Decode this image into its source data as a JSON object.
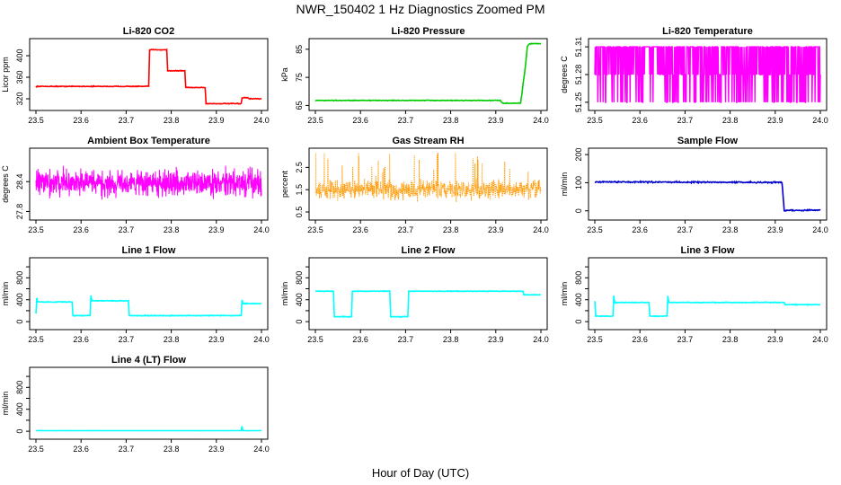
{
  "figure": {
    "title": "NWR_150402  1 Hz Diagnostics Zoomed PM",
    "xlabel": "Hour of Day (UTC)"
  },
  "chart_data": [
    {
      "id": "co2",
      "type": "line",
      "title": "Li-820 CO2",
      "ylabel": "Licor ppm",
      "color": "#ff0000",
      "xlim": [
        23.5,
        24.0
      ],
      "ylim": [
        305,
        425
      ],
      "yticks": [
        320,
        360,
        400
      ],
      "ytick_labels": [
        "320",
        "360",
        "400"
      ],
      "x": [
        23.5,
        23.75,
        23.752,
        23.79,
        23.792,
        23.83,
        23.832,
        23.875,
        23.877,
        23.955,
        23.957,
        23.97,
        23.972,
        24.0
      ],
      "y": [
        343,
        343,
        411,
        411,
        372,
        372,
        341,
        341,
        311,
        311,
        322,
        322,
        320,
        320
      ],
      "noise": 0.6
    },
    {
      "id": "pressure",
      "type": "line",
      "title": "Li-820 Pressure",
      "ylabel": "kPa",
      "color": "#00cc00",
      "xlim": [
        23.5,
        24.0
      ],
      "ylim": [
        64.5,
        87.5
      ],
      "yticks": [
        65,
        75,
        85
      ],
      "ytick_labels": [
        "65",
        "75",
        "85"
      ],
      "x": [
        23.5,
        23.91,
        23.915,
        23.955,
        23.965,
        23.97,
        23.975,
        24.0
      ],
      "y": [
        66.8,
        66.8,
        65.8,
        65.8,
        78,
        86,
        87,
        87
      ],
      "noise": 0.1
    },
    {
      "id": "licor_temp",
      "type": "line",
      "title": "Li-820 Temperature",
      "ylabel": "degrees C",
      "color": "#ff00ff",
      "xlim": [
        23.5,
        24.0
      ],
      "ylim": [
        51.245,
        51.315
      ],
      "yticks": [
        51.25,
        51.28,
        51.31
      ],
      "ytick_labels": [
        "51.25",
        "51.28",
        "51.31"
      ],
      "levels": [
        51.25,
        51.28,
        51.31
      ],
      "pattern": "binary"
    },
    {
      "id": "box_temp",
      "type": "line",
      "title": "Ambient Box Temperature",
      "ylabel": "degrees C",
      "color": "#ff00ff",
      "xlim": [
        23.5,
        24.0
      ],
      "ylim": [
        27.7,
        29.0
      ],
      "yticks": [
        27.8,
        28.4
      ],
      "ytick_labels": [
        "27.8",
        "28.4"
      ],
      "center": 28.37,
      "spread": 0.22,
      "pattern": "noisy"
    },
    {
      "id": "rh",
      "type": "scatter",
      "title": "Gas Stream RH",
      "ylabel": "percent",
      "color": "#ff9900",
      "xlim": [
        23.5,
        24.0
      ],
      "ylim": [
        0.3,
        3.2
      ],
      "yticks": [
        0.5,
        1.5,
        2.5
      ],
      "ytick_labels": [
        "0.5",
        "1.5",
        "2.5"
      ],
      "center": 1.5,
      "spread": 0.35,
      "pattern": "noisy-dots"
    },
    {
      "id": "sample_flow",
      "type": "line",
      "title": "Sample Flow",
      "ylabel": "ml/min",
      "color": "#0000cc",
      "xlim": [
        23.5,
        24.0
      ],
      "ylim": [
        -20,
        210
      ],
      "yticks": [
        0,
        100,
        200
      ],
      "ytick_labels": [
        "0",
        "100",
        "200"
      ],
      "x": [
        23.5,
        23.915,
        23.92,
        24.0
      ],
      "y": [
        103,
        101,
        2,
        2
      ],
      "noise": 2
    },
    {
      "id": "line1",
      "type": "line",
      "title": "Line 1 Flow",
      "ylabel": "ml/min",
      "color": "#00ffff",
      "xlim": [
        23.5,
        24.0
      ],
      "ylim": [
        -80,
        1100
      ],
      "yticks": [
        0,
        200,
        400,
        600,
        800,
        1000
      ],
      "ytick_labels": [
        "0",
        "400",
        "800"
      ],
      "x": [
        23.5,
        23.502,
        23.504,
        23.58,
        23.582,
        23.62,
        23.622,
        23.624,
        23.705,
        23.707,
        23.955,
        23.957,
        23.959,
        24.0
      ],
      "y": [
        150,
        430,
        360,
        360,
        110,
        110,
        480,
        380,
        380,
        110,
        110,
        400,
        330,
        330
      ],
      "noise": 6
    },
    {
      "id": "line2",
      "type": "line",
      "title": "Line 2 Flow",
      "ylabel": "ml/min",
      "color": "#00ffff",
      "xlim": [
        23.5,
        24.0
      ],
      "ylim": [
        -80,
        1100
      ],
      "yticks": [
        0,
        200,
        400,
        600,
        800,
        1000
      ],
      "ytick_labels": [
        "0",
        "400",
        "800"
      ],
      "x": [
        23.5,
        23.54,
        23.542,
        23.58,
        23.582,
        23.665,
        23.667,
        23.705,
        23.707,
        23.96,
        23.962,
        24.0
      ],
      "y": [
        555,
        555,
        90,
        90,
        555,
        555,
        90,
        90,
        555,
        555,
        490,
        490
      ],
      "noise": 5
    },
    {
      "id": "line3",
      "type": "line",
      "title": "Line 3 Flow",
      "ylabel": "ml/min",
      "color": "#00ffff",
      "xlim": [
        23.5,
        24.0
      ],
      "ylim": [
        -80,
        1100
      ],
      "yticks": [
        0,
        200,
        400,
        600,
        800,
        1000
      ],
      "ytick_labels": [
        "0",
        "400",
        "800"
      ],
      "x": [
        23.5,
        23.502,
        23.504,
        23.54,
        23.542,
        23.544,
        23.62,
        23.622,
        23.66,
        23.662,
        23.664,
        23.92,
        23.922,
        24.0
      ],
      "y": [
        380,
        100,
        100,
        100,
        480,
        350,
        350,
        100,
        100,
        470,
        350,
        350,
        310,
        310
      ],
      "noise": 6
    },
    {
      "id": "line4",
      "type": "line",
      "title": "Line 4 (LT) Flow",
      "ylabel": "ml/min",
      "color": "#00ffff",
      "xlim": [
        23.5,
        24.0
      ],
      "ylim": [
        -80,
        1100
      ],
      "yticks": [
        0,
        200,
        400,
        600,
        800,
        1000
      ],
      "ytick_labels": [
        "0",
        "400",
        "800"
      ],
      "x": [
        23.5,
        23.955,
        23.957,
        23.959,
        24.0
      ],
      "y": [
        10,
        10,
        90,
        10,
        10
      ],
      "noise": 1
    }
  ],
  "xaxis": {
    "ticks": [
      23.5,
      23.6,
      23.7,
      23.8,
      23.9,
      24.0
    ],
    "tick_labels": [
      "23.5",
      "23.6",
      "23.7",
      "23.8",
      "23.9",
      "24.0"
    ]
  }
}
